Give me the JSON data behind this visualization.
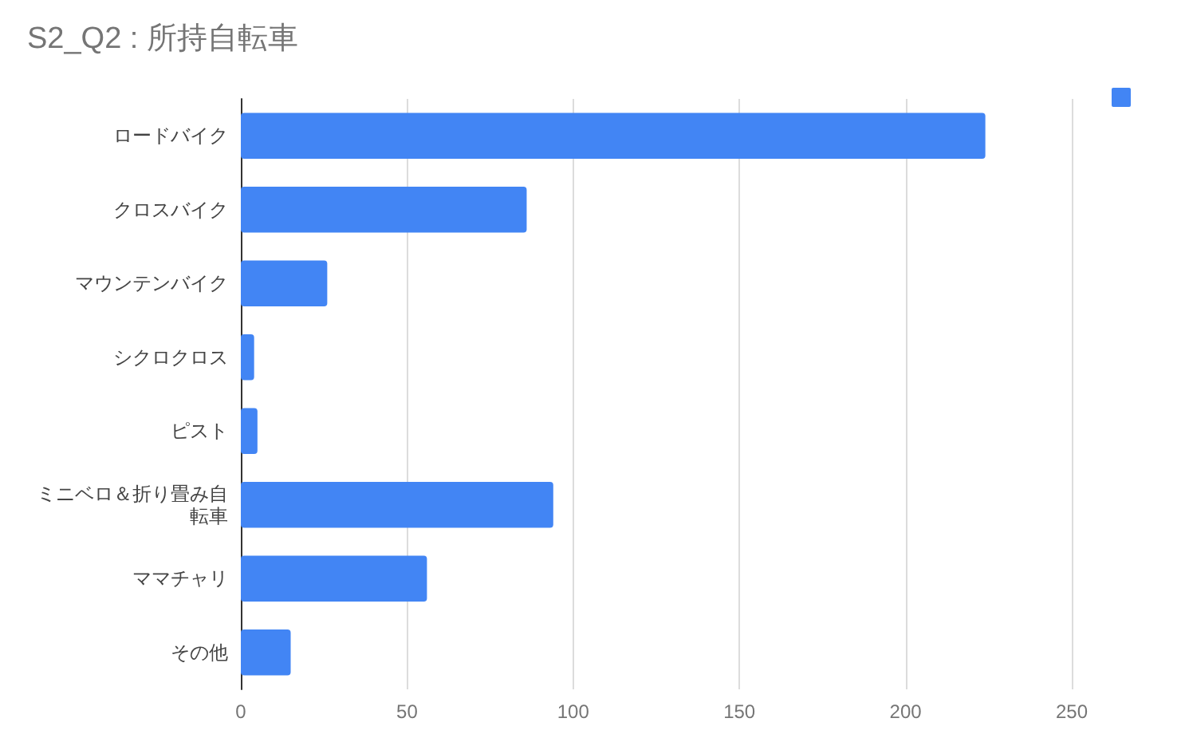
{
  "chart_data": {
    "type": "bar",
    "orientation": "horizontal",
    "title": "S2_Q2 : 所持自転車",
    "categories": [
      "ロードバイク",
      "クロスバイク",
      "マウンテンバイク",
      "シクロクロス",
      "ピスト",
      "ミニベロ＆折り畳み自転車",
      "ママチャリ",
      "その他"
    ],
    "values": [
      224,
      86,
      26,
      4,
      5,
      94,
      56,
      15
    ],
    "color": "#4285f4",
    "xlim": [
      0,
      250
    ],
    "xticks": [
      0,
      50,
      100,
      150,
      200,
      250
    ],
    "grid": "x"
  }
}
